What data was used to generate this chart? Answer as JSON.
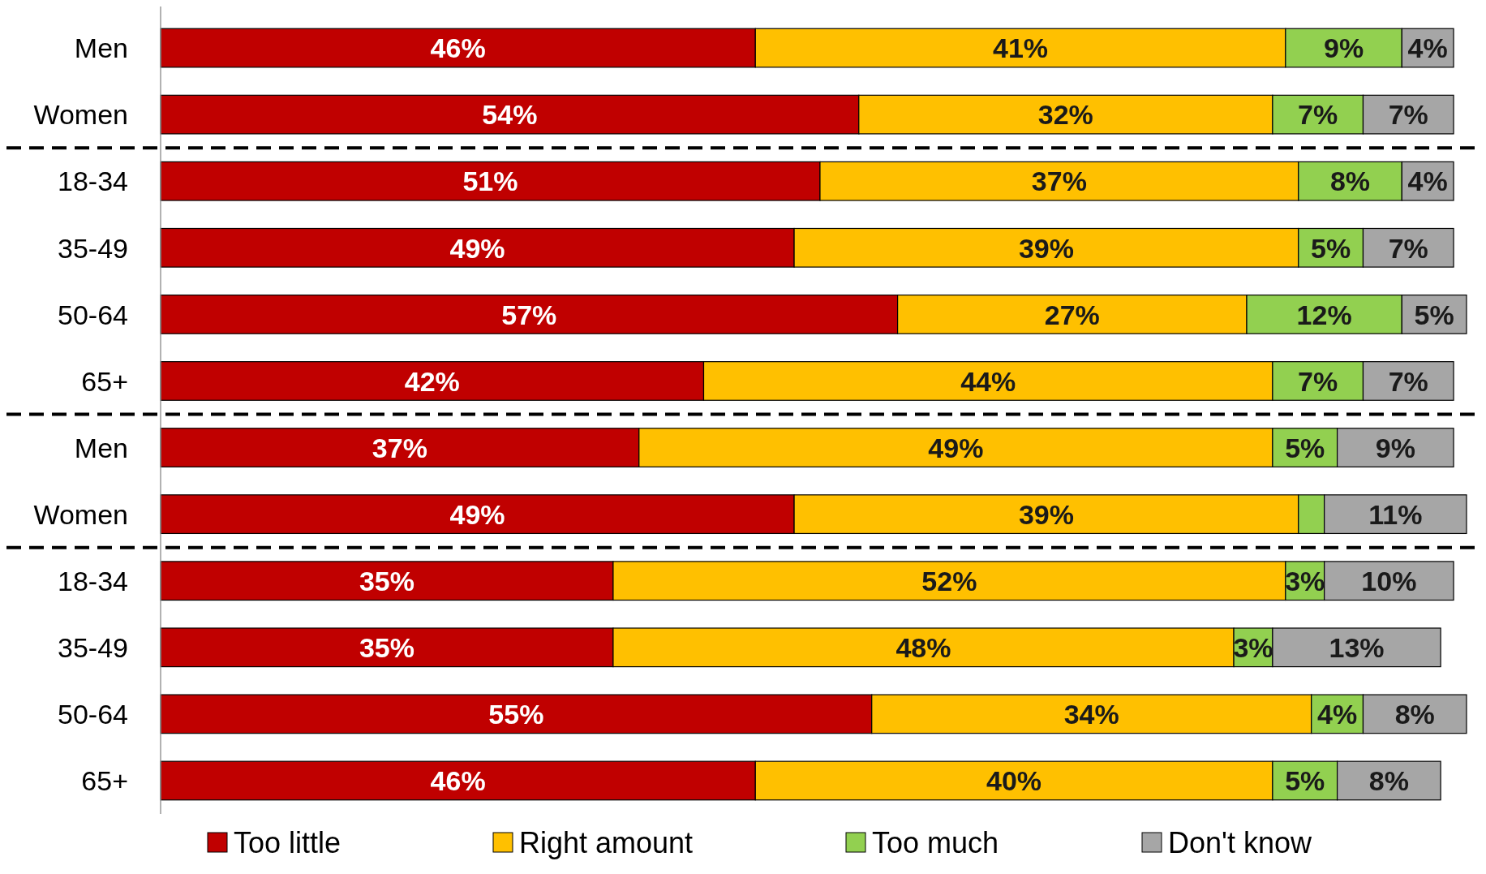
{
  "chart_data": {
    "type": "bar",
    "orientation": "horizontal",
    "stacked": true,
    "legend": "bottom",
    "categories": [
      "Men",
      "Women",
      "18-34",
      "35-49",
      "50-64",
      "65+",
      "Men",
      "Women",
      "18-34",
      "35-49",
      "50-64",
      "65+"
    ],
    "series": [
      {
        "name": "Too little",
        "color": "#c00000",
        "values": [
          46,
          54,
          51,
          49,
          57,
          42,
          37,
          49,
          35,
          35,
          55,
          46
        ],
        "value_labels": [
          "46%",
          "54%",
          "51%",
          "49%",
          "57%",
          "42%",
          "37%",
          "49%",
          "35%",
          "35%",
          "55%",
          "46%"
        ]
      },
      {
        "name": "Right amount",
        "color": "#ffc000",
        "values": [
          41,
          32,
          37,
          39,
          27,
          44,
          49,
          39,
          52,
          48,
          34,
          40
        ],
        "value_labels": [
          "41%",
          "32%",
          "37%",
          "39%",
          "27%",
          "44%",
          "49%",
          "39%",
          "52%",
          "48%",
          "34%",
          "40%"
        ]
      },
      {
        "name": "Too much",
        "color": "#92d050",
        "values": [
          9,
          7,
          8,
          5,
          12,
          7,
          5,
          2,
          3,
          3,
          4,
          5
        ],
        "value_labels": [
          "9%",
          "7%",
          "8%",
          "5%",
          "12%",
          "7%",
          "5%",
          null,
          "3%",
          "3%",
          "4%",
          "5%"
        ]
      },
      {
        "name": "Don't know",
        "color": "#a6a6a6",
        "values": [
          4,
          7,
          4,
          7,
          5,
          7,
          9,
          11,
          10,
          13,
          8,
          8
        ],
        "value_labels": [
          "4%",
          "7%",
          "4%",
          "7%",
          "5%",
          "7%",
          "9%",
          "11%",
          "10%",
          "13%",
          "8%",
          "8%"
        ]
      }
    ]
  }
}
